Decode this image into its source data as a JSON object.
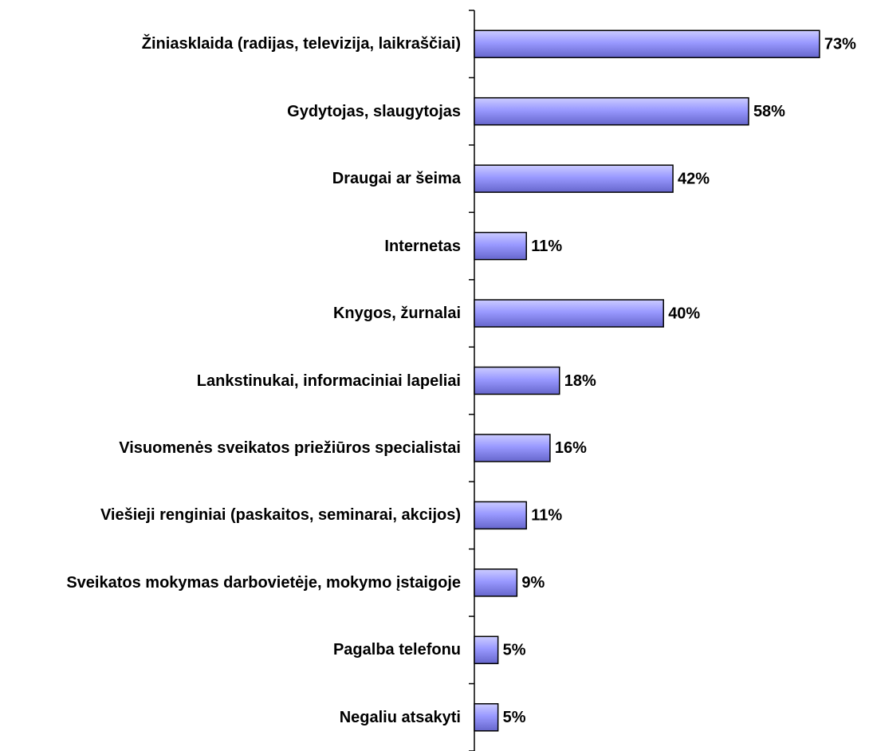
{
  "chart_data": {
    "type": "hbar",
    "categories": [
      "Žiniasklaida (radijas, televizija, laikraščiai)",
      "Gydytojas, slaugytojas",
      "Draugai ar šeima",
      "Internetas",
      "Knygos, žurnalai",
      "Lankstinukai, informaciniai lapeliai",
      "Visuomenės sveikatos priežiūros specialistai",
      "Viešieji renginiai (paskaitos, seminarai, akcijos)",
      "Sveikatos mokymas darbovietėje, mokymo įstaigoje",
      "Pagalba telefonu",
      "Negaliu atsakyti"
    ],
    "values": [
      73,
      58,
      42,
      11,
      40,
      18,
      16,
      11,
      9,
      5,
      5
    ],
    "value_labels": [
      "73%",
      "58%",
      "42%",
      "11%",
      "40%",
      "18%",
      "16%",
      "11%",
      "9%",
      "5%",
      "5%"
    ],
    "color": "#9999ff"
  }
}
